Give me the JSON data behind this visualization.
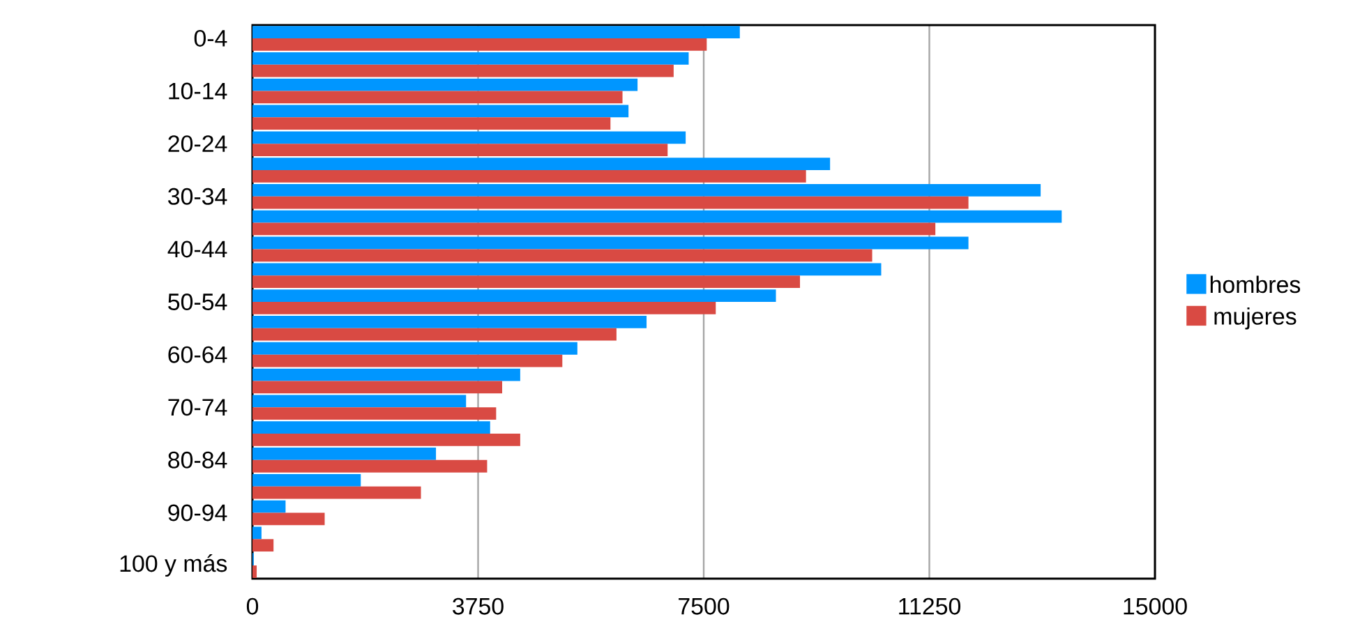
{
  "chart_data": {
    "type": "bar",
    "orientation": "horizontal",
    "categories": [
      "0-4",
      null,
      "10-14",
      null,
      "20-24",
      null,
      "30-34",
      null,
      "40-44",
      null,
      "50-54",
      null,
      "60-64",
      null,
      "70-74",
      null,
      "80-84",
      null,
      "90-94",
      null,
      "100 y más"
    ],
    "series": [
      {
        "name": "hombres",
        "color": "#0096ff",
        "values": [
          8100,
          7250,
          6400,
          6250,
          7200,
          9600,
          13100,
          13450,
          11900,
          10450,
          8700,
          6550,
          5400,
          4450,
          3550,
          3950,
          3050,
          1800,
          550,
          150,
          20
        ]
      },
      {
        "name": "mujeres",
        "color": "#d94a43",
        "values": [
          7550,
          7000,
          6150,
          5950,
          6900,
          9200,
          11900,
          11350,
          10300,
          9100,
          7700,
          6050,
          5150,
          4150,
          4050,
          4450,
          3900,
          2800,
          1200,
          350,
          70
        ]
      }
    ],
    "xlim": [
      0,
      15000
    ],
    "xticks": [
      0,
      3750,
      7500,
      11250,
      15000
    ],
    "grid": "x",
    "legend": "right"
  }
}
